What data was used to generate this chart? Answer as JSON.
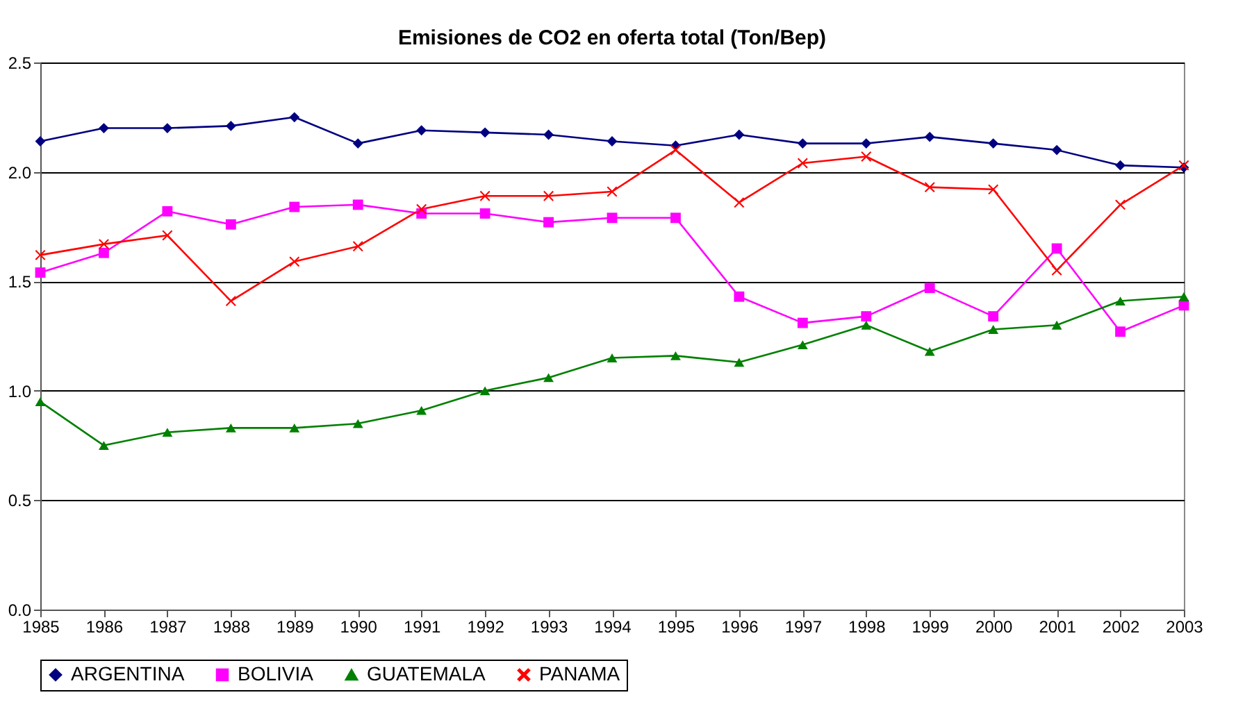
{
  "chart_data": {
    "type": "line",
    "title": "Emisiones de CO2 en oferta total (Ton/Bep)",
    "x": [
      1985,
      1986,
      1987,
      1988,
      1989,
      1990,
      1991,
      1992,
      1993,
      1994,
      1995,
      1996,
      1997,
      1998,
      1999,
      2000,
      2001,
      2002,
      2003
    ],
    "xlim": [
      1985,
      2003
    ],
    "xticks": [
      1985,
      1986,
      1987,
      1988,
      1989,
      1990,
      1991,
      1992,
      1993,
      1994,
      1995,
      1996,
      1997,
      1998,
      1999,
      2000,
      2001,
      2002,
      2003
    ],
    "ylim": [
      0,
      2.5
    ],
    "yticks": [
      {
        "value": 0,
        "label": "0.0"
      },
      {
        "value": 0.5,
        "label": "0.5"
      },
      {
        "value": 1,
        "label": "1.0"
      },
      {
        "value": 1.5,
        "label": "1.5"
      },
      {
        "value": 2,
        "label": "2.0"
      },
      {
        "value": 2.5,
        "label": "2.5"
      }
    ],
    "grid": "y",
    "legend": "bottom",
    "line_style": "solid",
    "series": [
      {
        "name": "ARGENTINA",
        "color": "#000080",
        "marker": "diamond",
        "values": [
          2.14,
          2.2,
          2.2,
          2.21,
          2.25,
          2.13,
          2.19,
          2.18,
          2.17,
          2.14,
          2.12,
          2.17,
          2.13,
          2.13,
          2.16,
          2.13,
          2.1,
          2.03,
          2.02
        ]
      },
      {
        "name": "BOLIVIA",
        "color": "#ff00ff",
        "marker": "square",
        "values": [
          1.54,
          1.63,
          1.82,
          1.76,
          1.84,
          1.85,
          1.81,
          1.81,
          1.77,
          1.79,
          1.79,
          1.43,
          1.31,
          1.34,
          1.47,
          1.34,
          1.65,
          1.27,
          1.39
        ]
      },
      {
        "name": "GUATEMALA",
        "color": "#008000",
        "marker": "triangle",
        "values": [
          0.95,
          0.75,
          0.81,
          0.83,
          0.83,
          0.85,
          0.91,
          1.0,
          1.06,
          1.15,
          1.16,
          1.13,
          1.21,
          1.3,
          1.18,
          1.28,
          1.3,
          1.41,
          1.43
        ]
      },
      {
        "name": "PANAMA",
        "color": "#ff0000",
        "marker": "cross",
        "values": [
          1.62,
          1.67,
          1.71,
          1.41,
          1.59,
          1.66,
          1.83,
          1.89,
          1.89,
          1.91,
          2.1,
          1.86,
          2.04,
          2.07,
          1.93,
          1.92,
          1.55,
          1.85,
          2.03
        ]
      }
    ]
  }
}
